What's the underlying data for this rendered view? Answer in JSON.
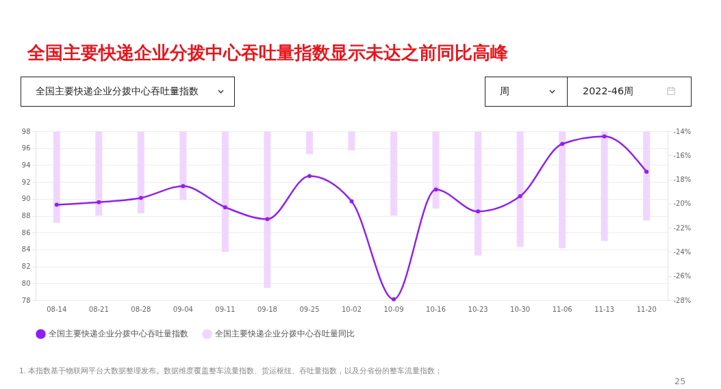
{
  "chart_data": {
    "type": "line",
    "title": "全国主要快递企业分拨中心吞吐量指数显示未达之前同比高峰",
    "annotations": [
      "全国主要快递企业分拨中心吞吐量指数",
      "周",
      "2022-46周",
      "1. 本指数基于物联网平台大数据整理发布。数据维度覆盖整车流量指数、货运枢纽、吞吐量指数，以及分省份的整车流量指数；",
      "25"
    ],
    "categories": [
      "08-14",
      "08-21",
      "08-28",
      "09-04",
      "09-11",
      "09-18",
      "09-25",
      "10-02",
      "10-09",
      "10-16",
      "10-23",
      "10-30",
      "11-06",
      "11-13",
      "11-20"
    ],
    "series": [
      {
        "name": "全国主要快递企业分拨中心吞吐量指数",
        "color": "#9020f0",
        "values": [
          89.3,
          89.6,
          90.1,
          91.5,
          89.0,
          87.6,
          92.7,
          89.7,
          78.1,
          91.1,
          88.5,
          90.3,
          96.5,
          97.4,
          93.2
        ]
      },
      {
        "name": "全国主要快递企业分拨中心吞吐量同比",
        "type": "bar",
        "axis": "y2",
        "color": "#f0d6ff",
        "values": [
          -21.6,
          -21.0,
          -20.8,
          -19.7,
          -24.0,
          -27.0,
          -15.9,
          -15.6,
          -21.0,
          -20.4,
          -24.3,
          -23.6,
          -23.7,
          -23.1,
          -21.4
        ]
      }
    ],
    "ylim": [
      78,
      98
    ],
    "yticks": [
      78,
      80,
      82,
      84,
      86,
      88,
      90,
      92,
      94,
      96,
      98
    ],
    "y2lim": [
      -28,
      -14
    ],
    "y2ticks": [
      {
        "value": -28,
        "label": "-28%"
      },
      {
        "value": -26,
        "label": "-26%"
      },
      {
        "value": -24,
        "label": "-24%"
      },
      {
        "value": -22,
        "label": "-22%"
      },
      {
        "value": -20,
        "label": "-20%"
      },
      {
        "value": -18,
        "label": "-18%"
      },
      {
        "value": -16,
        "label": "-16%"
      },
      {
        "value": -14,
        "label": "-14%"
      }
    ],
    "grid": "y",
    "legend": "bottom",
    "marker": "circle",
    "line_style": "solid"
  }
}
